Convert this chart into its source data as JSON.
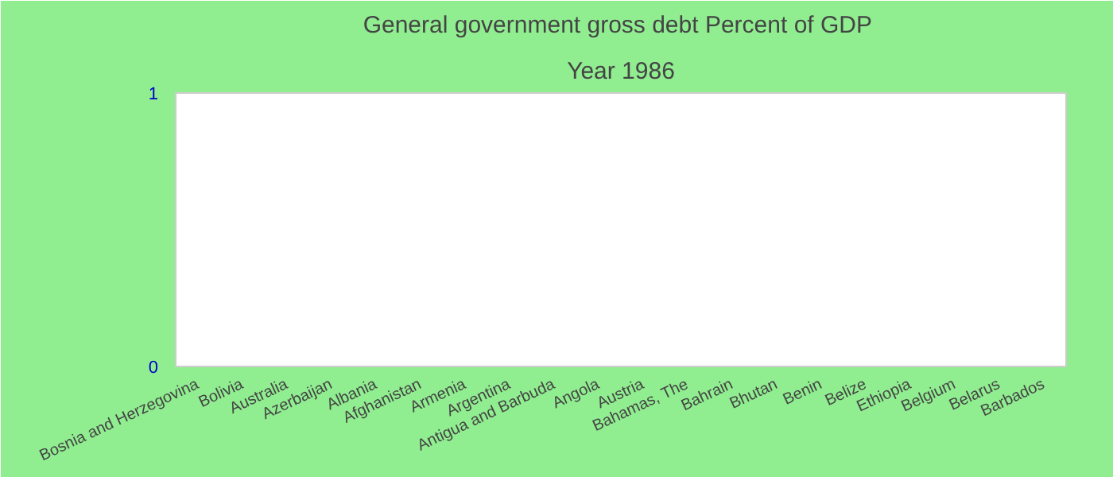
{
  "chart_data": {
    "type": "bar",
    "title": "General government gross debt  Percent of GDP",
    "subtitle": "Year 1986",
    "categories": [
      "Bosnia and Herzegovina",
      "Bolivia",
      "Australia",
      "Azerbaijan",
      "Albania",
      "Afghanistan",
      "Armenia",
      "Argentina",
      "Antigua and Barbuda",
      "Angola",
      "Austria",
      "Bahamas, The",
      "Bahrain",
      "Bhutan",
      "Benin",
      "Belize",
      "Ethiopia",
      "Belgium",
      "Belarus",
      "Barbados"
    ],
    "values": [
      null,
      null,
      null,
      null,
      null,
      null,
      null,
      null,
      null,
      null,
      null,
      null,
      null,
      null,
      null,
      null,
      null,
      null,
      null,
      null
    ],
    "ylim": [
      0,
      1
    ],
    "yticks": [
      0,
      1
    ],
    "grid": false
  }
}
